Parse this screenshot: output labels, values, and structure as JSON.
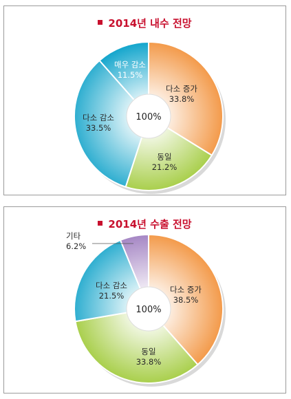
{
  "chart_data": [
    {
      "type": "pie",
      "title": "2014년 내수 전망",
      "center_label": "100%",
      "slices": [
        {
          "label": "다소 증가",
          "value_text": "33.8%",
          "value": 33.8,
          "color": "#f39a4a"
        },
        {
          "label": "동일",
          "value_text": "21.2%",
          "value": 21.2,
          "color": "#a9cf4c"
        },
        {
          "label": "다소 감소",
          "value_text": "33.5%",
          "value": 33.5,
          "color": "#2eaed0"
        },
        {
          "label": "매우 감소",
          "value_text": "11.5%",
          "value": 11.5,
          "color": "#12a5cc"
        }
      ]
    },
    {
      "type": "pie",
      "title": "2014년 수출 전망",
      "center_label": "100%",
      "slices": [
        {
          "label": "다소 증가",
          "value_text": "38.5%",
          "value": 38.5,
          "color": "#f39a4a"
        },
        {
          "label": "동일",
          "value_text": "33.8%",
          "value": 33.8,
          "color": "#a9cf4c"
        },
        {
          "label": "다소 감소",
          "value_text": "21.5%",
          "value": 21.5,
          "color": "#2eaed0"
        },
        {
          "label": "기타",
          "value_text": "6.2%",
          "value": 6.2,
          "color": "#a586c4"
        }
      ]
    }
  ]
}
